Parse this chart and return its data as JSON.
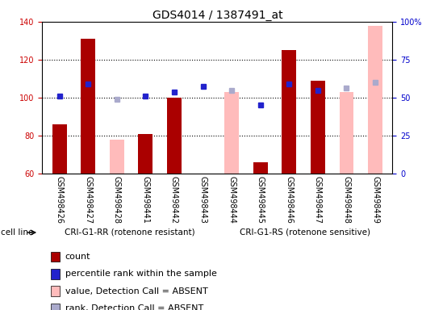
{
  "title": "GDS4014 / 1387491_at",
  "samples": [
    "GSM498426",
    "GSM498427",
    "GSM498428",
    "GSM498441",
    "GSM498442",
    "GSM498443",
    "GSM498444",
    "GSM498445",
    "GSM498446",
    "GSM498447",
    "GSM498448",
    "GSM498449"
  ],
  "ylim_left": [
    60,
    140
  ],
  "ylim_right": [
    0,
    100
  ],
  "yticks_left": [
    60,
    80,
    100,
    120,
    140
  ],
  "yticks_right": [
    0,
    25,
    50,
    75,
    100
  ],
  "yticklabels_right": [
    "0",
    "25",
    "50",
    "75",
    "100%"
  ],
  "count_values": [
    86,
    131,
    null,
    81,
    100,
    null,
    null,
    66,
    125,
    109,
    null,
    null
  ],
  "rank_values": [
    101,
    107,
    null,
    101,
    103,
    106,
    null,
    96,
    107,
    104,
    null,
    null
  ],
  "absent_value_values": [
    null,
    null,
    78,
    null,
    null,
    null,
    103,
    null,
    null,
    null,
    103,
    138
  ],
  "absent_rank_values": [
    null,
    null,
    99,
    null,
    null,
    null,
    104,
    null,
    null,
    null,
    105,
    108
  ],
  "count_color": "#aa0000",
  "rank_color": "#2222cc",
  "absent_value_color": "#ffbbbb",
  "absent_rank_color": "#aaaacc",
  "group1_label": "CRI-G1-RR (rotenone resistant)",
  "group2_label": "CRI-G1-RS (rotenone sensitive)",
  "group1_count": 6,
  "group2_count": 6,
  "group1_color": "#99ee99",
  "group2_color": "#55dd55",
  "cell_line_label": "cell line",
  "legend_entries": [
    {
      "label": "count",
      "color": "#aa0000"
    },
    {
      "label": "percentile rank within the sample",
      "color": "#2222cc"
    },
    {
      "label": "value, Detection Call = ABSENT",
      "color": "#ffbbbb"
    },
    {
      "label": "rank, Detection Call = ABSENT",
      "color": "#aaaacc"
    }
  ],
  "bar_width": 0.5,
  "rank_marker_size": 4.5,
  "background_color": "#ffffff",
  "plot_bg_color": "#ffffff",
  "xtick_bg_color": "#cccccc",
  "dotted_lines": [
    80,
    100,
    120
  ],
  "ylabel_left_color": "#cc0000",
  "ylabel_right_color": "#0000cc",
  "title_fontsize": 10,
  "tick_fontsize": 7,
  "legend_fontsize": 8
}
